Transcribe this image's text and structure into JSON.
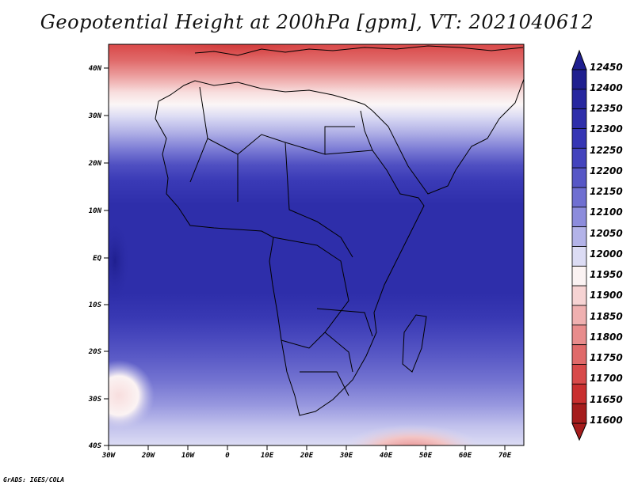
{
  "title": "Geopotential Height at 200hPa [gpm], VT: 2021040612",
  "credit": "GrADS: IGES/COLA",
  "map": {
    "lat_labels": [
      "40N",
      "30N",
      "20N",
      "10N",
      "EQ",
      "10S",
      "20S",
      "30S",
      "40S"
    ],
    "lon_labels": [
      "30W",
      "20W",
      "10W",
      "0",
      "10E",
      "20E",
      "30E",
      "40E",
      "50E",
      "60E",
      "70E"
    ]
  },
  "colorbar": {
    "labels": [
      "12450",
      "12400",
      "12350",
      "12300",
      "12250",
      "12200",
      "12150",
      "12100",
      "12050",
      "12000",
      "11950",
      "11900",
      "11850",
      "11800",
      "11750",
      "11700",
      "11650",
      "11600"
    ],
    "colors": [
      "#1f1f8f",
      "#27279f",
      "#2e2eaa",
      "#3535b4",
      "#4343bd",
      "#5757c6",
      "#6f6fd1",
      "#8c8cdc",
      "#b3b3e8",
      "#dcdcf4",
      "#fbf3f3",
      "#f6d3d3",
      "#efb0b0",
      "#e88c8c",
      "#e06a6a",
      "#d84a4a",
      "#c92f2f",
      "#a51c1c"
    ]
  }
}
